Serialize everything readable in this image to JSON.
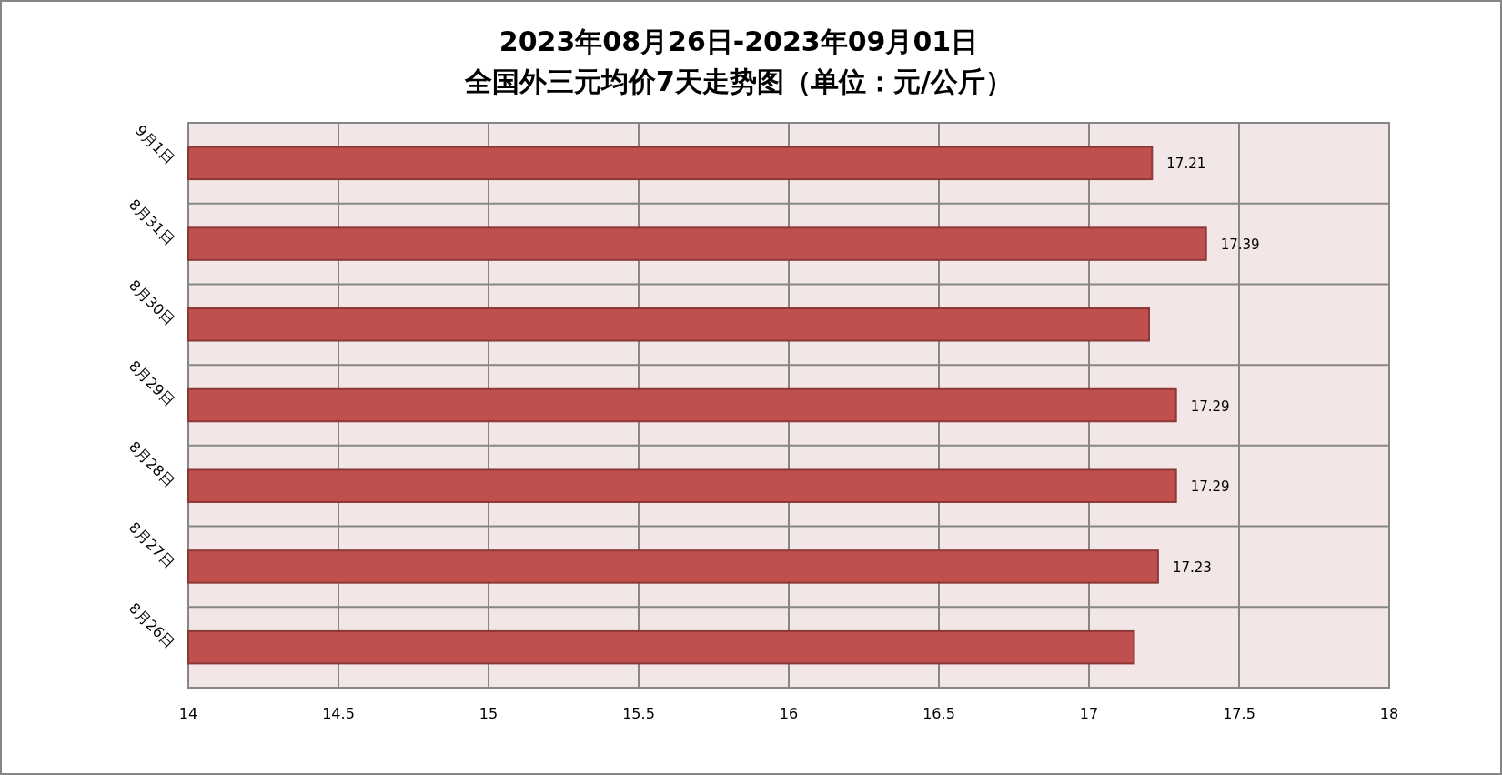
{
  "chart_data": {
    "type": "bar",
    "orientation": "horizontal",
    "title": "2023年08月26日-2023年09月01日",
    "subtitle": "全国外三元均价7天走势图（单位：元/公斤）",
    "categories": [
      "9月1日",
      "8月31日",
      "8月30日",
      "8月29日",
      "8月28日",
      "8月27日",
      "8月26日"
    ],
    "values": [
      17.21,
      17.39,
      17.2,
      17.29,
      17.29,
      17.23,
      17.15
    ],
    "value_labels": [
      "17.21",
      "17.39",
      null,
      "17.29",
      "17.29",
      "17.23",
      null
    ],
    "color": "#c0504d",
    "xlim": [
      14,
      18
    ],
    "xticks": [
      14,
      14.5,
      15,
      15.5,
      16,
      16.5,
      17,
      17.5,
      18
    ],
    "grid": true
  }
}
